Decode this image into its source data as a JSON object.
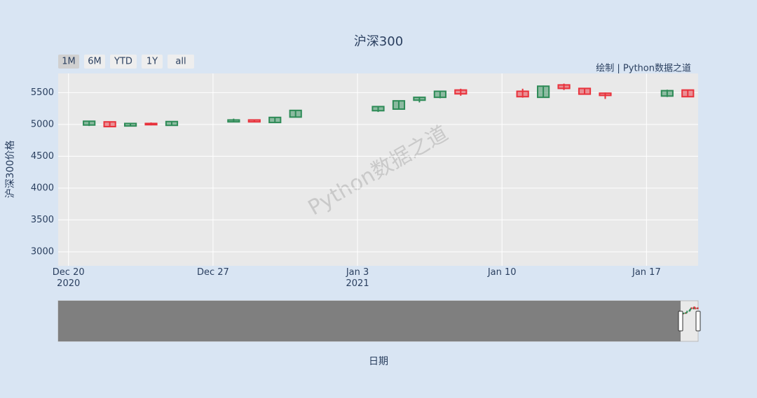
{
  "chart_data": {
    "type": "candlestick",
    "title": "沪深300",
    "x_label": "日期",
    "y_label": "沪深300价格",
    "annotation": "绘制 | Python数据之道",
    "watermark": "Python数据之道",
    "range_buttons": [
      "1M",
      "6M",
      "YTD",
      "1Y",
      "all"
    ],
    "active_button": "1M",
    "increasing_color": "#2e8b57",
    "decreasing_color": "#e8323c",
    "grid": true,
    "x": [
      "2020-12-21",
      "2020-12-22",
      "2020-12-23",
      "2020-12-24",
      "2020-12-25",
      "2020-12-28",
      "2020-12-29",
      "2020-12-30",
      "2020-12-31",
      "2021-01-04",
      "2021-01-05",
      "2021-01-06",
      "2021-01-07",
      "2021-01-08",
      "2021-01-11",
      "2021-01-12",
      "2021-01-13",
      "2021-01-14",
      "2021-01-15",
      "2021-01-18",
      "2021-01-19"
    ],
    "open": [
      4990,
      5040,
      4975,
      5015,
      4985,
      5040,
      5070,
      5030,
      5115,
      5215,
      5240,
      5380,
      5425,
      5540,
      5520,
      5425,
      5620,
      5565,
      5490,
      5445,
      5540
    ],
    "high": [
      5055,
      5045,
      5025,
      5030,
      5050,
      5090,
      5075,
      5115,
      5225,
      5285,
      5375,
      5435,
      5525,
      5560,
      5560,
      5610,
      5640,
      5570,
      5500,
      5545,
      5545
    ],
    "low": [
      4975,
      4960,
      4970,
      4985,
      4980,
      5035,
      5035,
      5025,
      5110,
      5195,
      5235,
      5345,
      5410,
      5450,
      5420,
      5420,
      5540,
      5470,
      5400,
      5430,
      5430
    ],
    "close": [
      5050,
      4965,
      5015,
      4995,
      5045,
      5070,
      5040,
      5110,
      5220,
      5280,
      5370,
      5425,
      5520,
      5480,
      5435,
      5600,
      5565,
      5475,
      5455,
      5530,
      5435
    ],
    "xlim": [
      "2020-12-19 12:00",
      "2021-01-19 12:00"
    ],
    "xticks": [
      {
        "value": "2020-12-20",
        "label": "Dec 20\n2020"
      },
      {
        "value": "2020-12-27",
        "label": "Dec 27"
      },
      {
        "value": "2021-01-03",
        "label": "Jan 3\n2021"
      },
      {
        "value": "2021-01-10",
        "label": "Jan 10"
      },
      {
        "value": "2021-01-17",
        "label": "Jan 17"
      }
    ],
    "ylim": [
      2780,
      5800
    ],
    "yticks": [
      3000,
      3500,
      4000,
      4500,
      5000,
      5500
    ],
    "rangeslider_xlim": [
      "2017-12-14",
      "2021-01-19 12:00"
    ]
  }
}
